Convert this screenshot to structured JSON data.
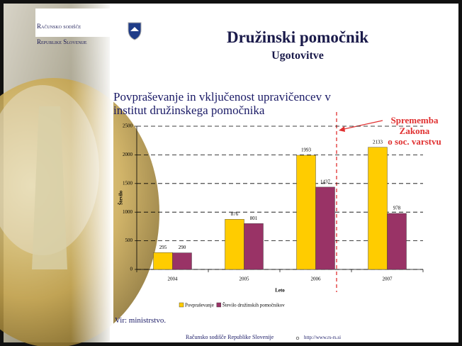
{
  "logo": {
    "line1": "Računsko sodišče",
    "line2": "Republike Slovenije"
  },
  "header": {
    "title": "Družinski pomočnik",
    "subtitle": "Ugotovitve"
  },
  "chart_data": {
    "type": "bar",
    "title": "Povpraševanje in vključenost upravičencev v\ninstitut družinskega pomočnika",
    "categories": [
      "2004",
      "2005",
      "2006",
      "2007"
    ],
    "series": [
      {
        "name": "Povpraševanje",
        "color": "#ffcc00",
        "values": [
          295,
          876,
          1993,
          2133
        ]
      },
      {
        "name": "Število družinskih pomočnikov",
        "color": "#993366",
        "values": [
          290,
          801,
          1437,
          978
        ]
      }
    ],
    "ylim": [
      0,
      2500
    ],
    "yticks": [
      0,
      500,
      1000,
      1500,
      2000,
      2500
    ],
    "grid": true,
    "ylabel": "Število",
    "xlabel": "Leto",
    "legend": "bottom",
    "annotation": "Sprememba\nZakona\no soc. varstvu"
  },
  "source": "Vir: ministrstvo.",
  "footer": {
    "org": "Računsko sodišče Republike Slovenije",
    "url": "http://www.rs-rs.si"
  }
}
